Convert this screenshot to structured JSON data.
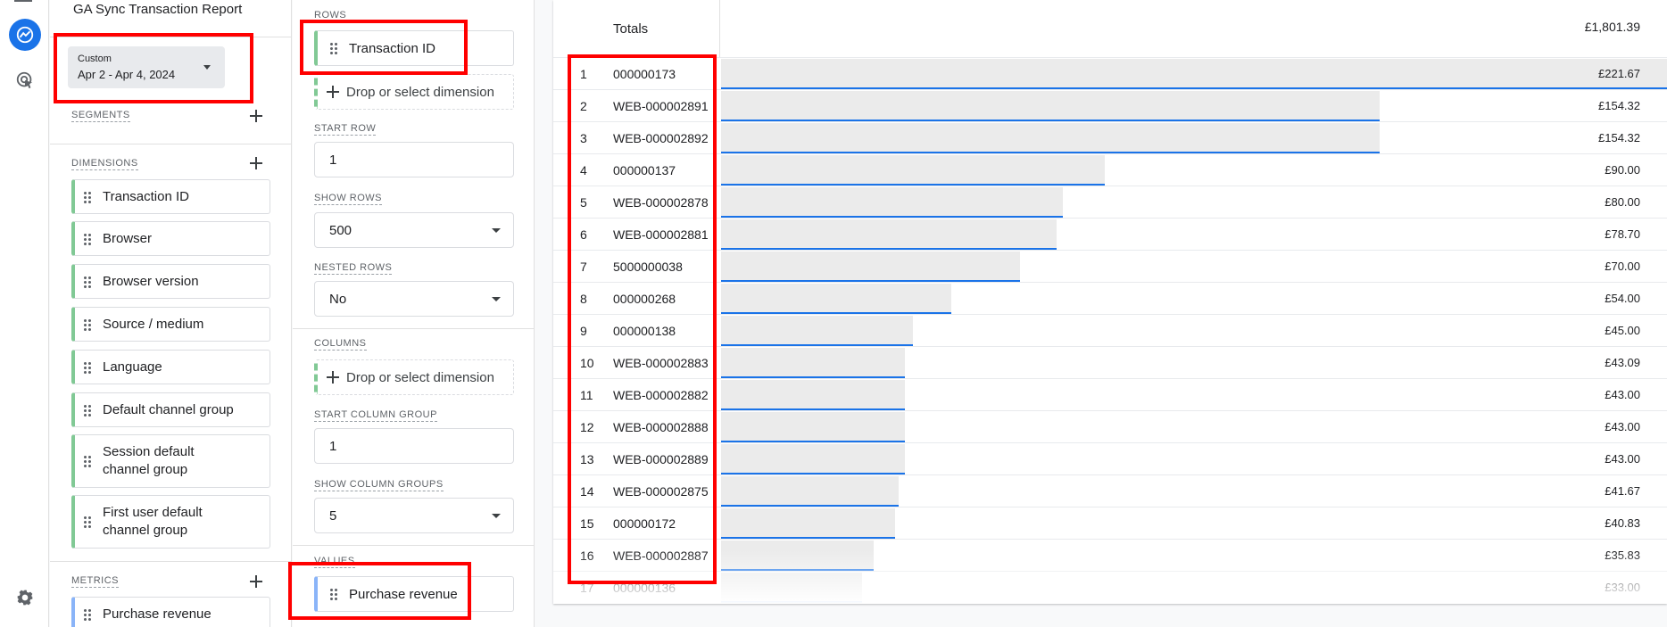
{
  "report": {
    "name": "GA Sync Transaction Report"
  },
  "date_range": {
    "label": "Custom",
    "value": "Apr 2 - Apr 4, 2024"
  },
  "sections": {
    "segments": "SEGMENTS",
    "dimensions": "DIMENSIONS",
    "metrics": "METRICS",
    "rows": "ROWS",
    "start_row": "START ROW",
    "show_rows": "SHOW ROWS",
    "nested_rows": "NESTED ROWS",
    "columns": "COLUMNS",
    "start_column_group": "START COLUMN GROUP",
    "show_column_groups": "SHOW COLUMN GROUPS",
    "values": "VALUES"
  },
  "dimensions": [
    "Transaction ID",
    "Browser",
    "Browser version",
    "Source / medium",
    "Language",
    "Default channel group",
    "Session default channel group",
    "First user default channel group"
  ],
  "metrics": [
    "Purchase revenue"
  ],
  "tab_settings": {
    "rows_chip": "Transaction ID",
    "drop_dimension": "Drop or select dimension",
    "start_row": "1",
    "show_rows": "500",
    "nested_rows": "No",
    "columns_drop": "Drop or select dimension",
    "start_column_group": "1",
    "show_column_groups": "5",
    "values_chip": "Purchase revenue"
  },
  "table": {
    "totals_label": "Totals",
    "totals_value": "£1,801.39",
    "max_value": 221.67,
    "rows": [
      {
        "idx": "1",
        "id": "000000173",
        "rev": "£221.67",
        "v": 221.67
      },
      {
        "idx": "2",
        "id": "WEB-000002891",
        "rev": "£154.32",
        "v": 154.32
      },
      {
        "idx": "3",
        "id": "WEB-000002892",
        "rev": "£154.32",
        "v": 154.32
      },
      {
        "idx": "4",
        "id": "000000137",
        "rev": "£90.00",
        "v": 90.0
      },
      {
        "idx": "5",
        "id": "WEB-000002878",
        "rev": "£80.00",
        "v": 80.0
      },
      {
        "idx": "6",
        "id": "WEB-000002881",
        "rev": "£78.70",
        "v": 78.7
      },
      {
        "idx": "7",
        "id": "5000000038",
        "rev": "£70.00",
        "v": 70.0
      },
      {
        "idx": "8",
        "id": "000000268",
        "rev": "£54.00",
        "v": 54.0
      },
      {
        "idx": "9",
        "id": "000000138",
        "rev": "£45.00",
        "v": 45.0
      },
      {
        "idx": "10",
        "id": "WEB-000002883",
        "rev": "£43.09",
        "v": 43.09
      },
      {
        "idx": "11",
        "id": "WEB-000002882",
        "rev": "£43.00",
        "v": 43.0
      },
      {
        "idx": "12",
        "id": "WEB-000002888",
        "rev": "£43.00",
        "v": 43.0
      },
      {
        "idx": "13",
        "id": "WEB-000002889",
        "rev": "£43.00",
        "v": 43.0
      },
      {
        "idx": "14",
        "id": "WEB-000002875",
        "rev": "£41.67",
        "v": 41.67
      },
      {
        "idx": "15",
        "id": "000000172",
        "rev": "£40.83",
        "v": 40.83
      },
      {
        "idx": "16",
        "id": "WEB-000002887",
        "rev": "£35.83",
        "v": 35.83
      },
      {
        "idx": "17",
        "id": "000000136",
        "rev": "£33.00",
        "v": 33.0
      }
    ]
  },
  "colors": {
    "accent": "#1a73e8",
    "dimension_chip": "#81c995",
    "metric_chip": "#8ab4f8",
    "highlight": "#ff0000"
  }
}
